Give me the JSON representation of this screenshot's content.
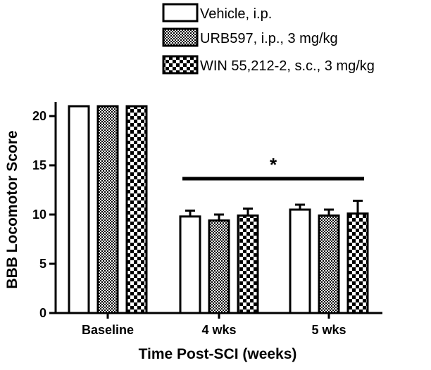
{
  "chart_data": {
    "type": "bar",
    "categories": [
      "Baseline",
      "4 wks",
      "5 wks"
    ],
    "series": [
      {
        "name": "Vehicle, i.p.",
        "values": [
          21,
          9.8,
          10.5
        ],
        "errors": [
          0,
          0.6,
          0.5
        ],
        "pattern": "white"
      },
      {
        "name": "URB597, i.p., 3 mg/kg",
        "values": [
          21,
          9.4,
          9.9
        ],
        "errors": [
          0,
          0.6,
          0.6
        ],
        "pattern": "fine-check"
      },
      {
        "name": "WIN 55,212-2, s.c., 3 mg/kg",
        "values": [
          21,
          9.9,
          10.1
        ],
        "errors": [
          0,
          0.7,
          1.3
        ],
        "pattern": "coarse-check"
      }
    ],
    "xlabel": "Time Post-SCI (weeks)",
    "ylabel": "BBB Locomotor Score",
    "ylim": [
      0,
      22
    ],
    "yticks": [
      "0",
      "5",
      "10",
      "15",
      "20"
    ],
    "significance": {
      "label": "*",
      "from_category": "4 wks",
      "to_category": "5 wks"
    },
    "legend_position": "top-right",
    "colors": {
      "fill": "#ffffff",
      "stroke": "#000000",
      "pattern_dark": "#000000"
    }
  }
}
